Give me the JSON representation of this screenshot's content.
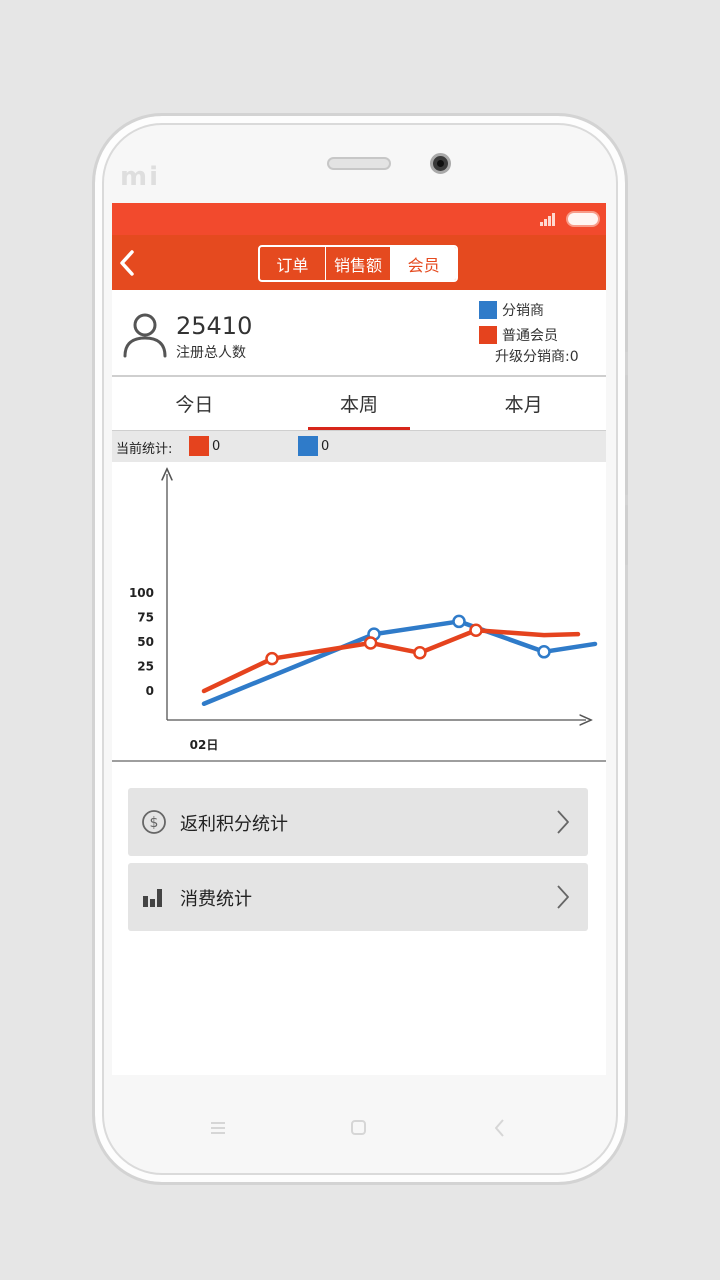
{
  "device": {
    "brand": "mi"
  },
  "header": {
    "segments": [
      {
        "label": "订单",
        "active": false
      },
      {
        "label": "销售额",
        "active": false
      },
      {
        "label": "会员",
        "active": true
      }
    ]
  },
  "summary": {
    "count": "25410",
    "count_label": "注册总人数",
    "legend": [
      {
        "name": "分销商",
        "color": "#2f7bc9"
      },
      {
        "name": "普通会员",
        "color": "#e5431e"
      }
    ],
    "upgrade_text": "升级分销商:0"
  },
  "period_tabs": [
    {
      "label": "今日",
      "active": false
    },
    {
      "label": "本周",
      "active": true
    },
    {
      "label": "本月",
      "active": false
    }
  ],
  "stats": {
    "label": "当前统计:",
    "items": [
      {
        "color": "#e5431e",
        "value": "0"
      },
      {
        "color": "#2f7bc9",
        "value": "0"
      }
    ]
  },
  "chart_data": {
    "type": "line",
    "x_tick_labels": [
      "02日"
    ],
    "y_ticks": [
      "100",
      "75",
      "50",
      "25",
      "0"
    ],
    "ylim": [
      0,
      100
    ],
    "series": [
      {
        "name": "分销商",
        "color": "#2f7bc9",
        "points": [
          [
            0.0,
            -13
          ],
          [
            1.0,
            58
          ],
          [
            1.5,
            71
          ],
          [
            2.0,
            40
          ],
          [
            2.3,
            48
          ]
        ],
        "markers": [
          1,
          2,
          3
        ]
      },
      {
        "name": "普通会员",
        "color": "#e5431e",
        "points": [
          [
            0.0,
            0
          ],
          [
            0.4,
            33
          ],
          [
            0.98,
            49
          ],
          [
            1.27,
            39
          ],
          [
            1.6,
            62
          ],
          [
            2.0,
            57
          ],
          [
            2.2,
            58
          ]
        ],
        "markers": [
          1,
          2,
          3,
          4
        ]
      }
    ],
    "grid": false,
    "legend_position": "top-right"
  },
  "menu": [
    {
      "label": "返利积分统计",
      "icon": "dollar-circle-icon"
    },
    {
      "label": "消费统计",
      "icon": "bar-chart-icon"
    }
  ],
  "colors": {
    "primary": "#e54a1f",
    "status_bar": "#f24a2d",
    "blue": "#2f7bc9",
    "orange": "#e5431e"
  }
}
